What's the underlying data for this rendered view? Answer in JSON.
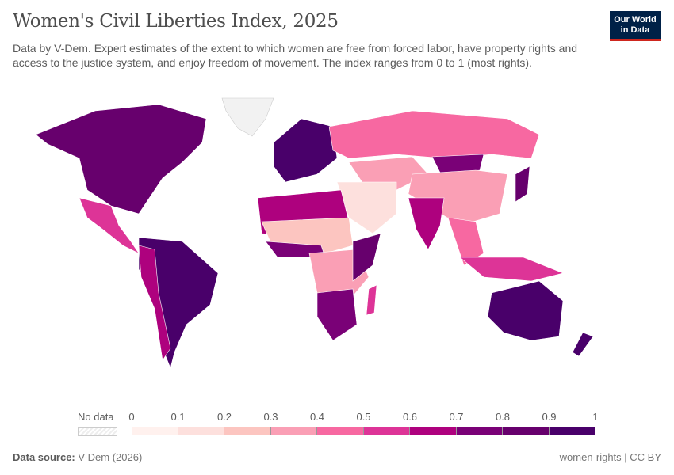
{
  "header": {
    "title": "Women's Civil Liberties Index, 2025",
    "subtitle": "Data by V-Dem. Expert estimates of the extent to which women are free from forced labor, have property rights and access to the justice system, and enjoy freedom of movement. The index ranges from 0 to 1 (most rights).",
    "logo_line1": "Our World",
    "logo_line2": "in Data"
  },
  "legend": {
    "no_data_label": "No data",
    "ticks": [
      "0",
      "0.1",
      "0.2",
      "0.3",
      "0.4",
      "0.5",
      "0.6",
      "0.7",
      "0.8",
      "0.9",
      "1"
    ],
    "colors": [
      "#fff1ee",
      "#fde0dd",
      "#fcc5c0",
      "#fa9fb5",
      "#f768a1",
      "#dd3497",
      "#ae017e",
      "#7a0177",
      "#67006d",
      "#49006a"
    ]
  },
  "footer": {
    "source_label": "Data source:",
    "source": "V-Dem (2026)",
    "right": "women-rights | CC BY"
  },
  "chart_data": {
    "type": "choropleth",
    "title": "Women's Civil Liberties Index, 2025",
    "year": 2025,
    "bins": [
      0,
      0.1,
      0.2,
      0.3,
      0.4,
      0.5,
      0.6,
      0.7,
      0.8,
      0.9,
      1
    ]
  }
}
